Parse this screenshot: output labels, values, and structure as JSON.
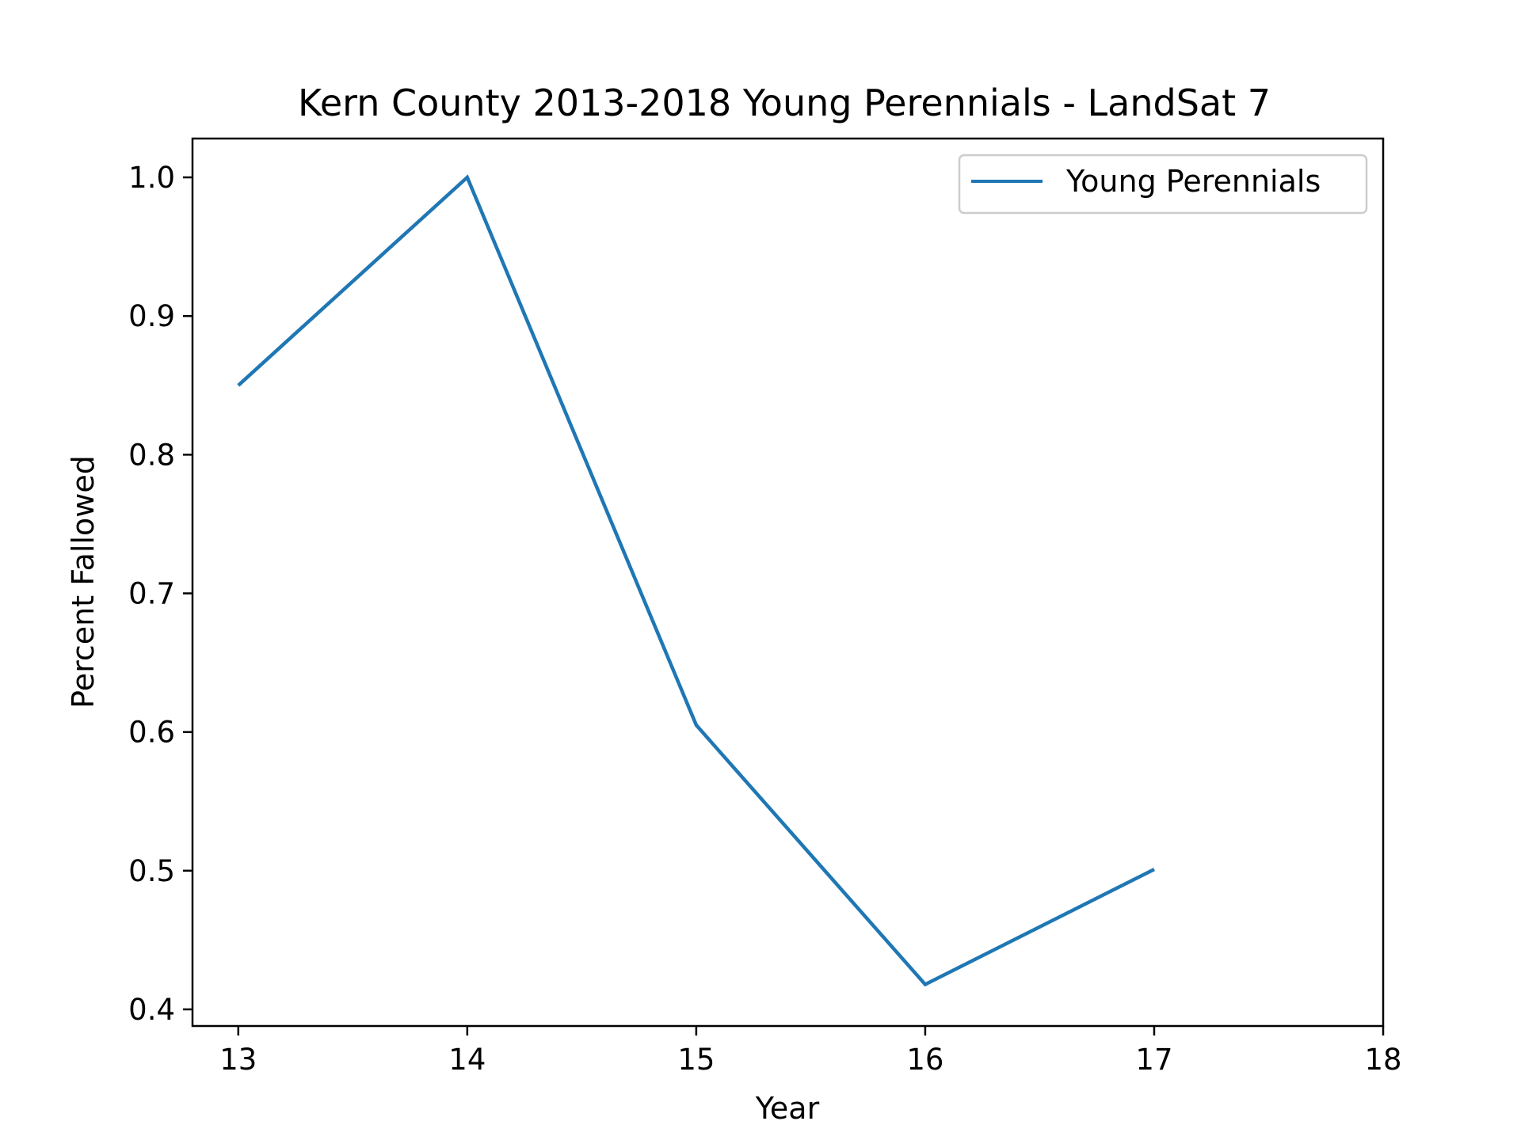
{
  "chart_data": {
    "type": "line",
    "title": "Kern County 2013-2018 Young Perennials - LandSat 7",
    "xlabel": "Year",
    "ylabel": "Percent Fallowed",
    "x": [
      13,
      14,
      15,
      16,
      17
    ],
    "series": [
      {
        "name": "Young Perennials",
        "values": [
          0.85,
          1.0,
          0.605,
          0.418,
          0.501
        ],
        "color": "#1f77b4"
      }
    ],
    "xlim": [
      12.8,
      18.0
    ],
    "ylim": [
      0.388,
      1.028
    ],
    "xticks": [
      13,
      14,
      15,
      16,
      17,
      18
    ],
    "xtick_labels": [
      "13",
      "14",
      "15",
      "16",
      "17",
      "18"
    ],
    "yticks": [
      0.4,
      0.5,
      0.6,
      0.7,
      0.8,
      0.9,
      1.0
    ],
    "ytick_labels": [
      "0.4",
      "0.5",
      "0.6",
      "0.7",
      "0.8",
      "0.9",
      "1.0"
    ],
    "grid": false,
    "legend": "upper right"
  }
}
